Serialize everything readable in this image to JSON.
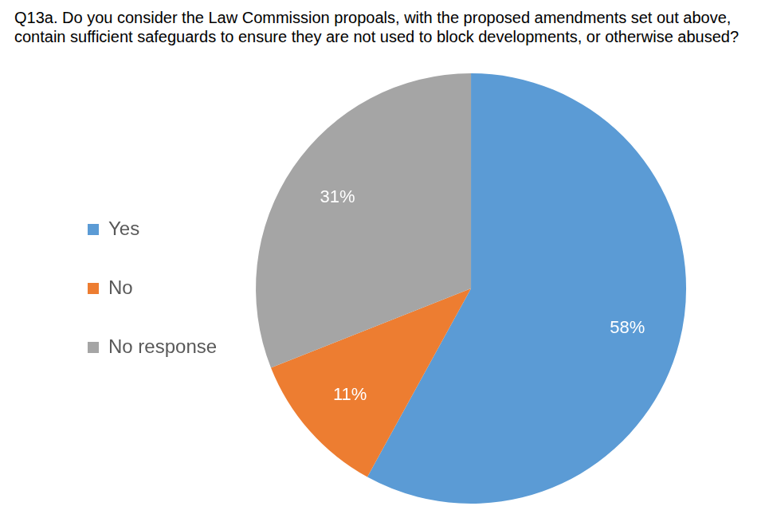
{
  "chart_data": {
    "type": "pie",
    "title": "Q13a. Do you consider the Law Commission propoals, with the proposed amendments set out above, contain sufficient safeguards to ensure they are not used to block developments, or otherwise abused?",
    "categories": [
      "Yes",
      "No",
      "No response"
    ],
    "values": [
      58,
      11,
      31
    ],
    "value_labels": [
      "58%",
      "11%",
      "31%"
    ],
    "colors": [
      "#5B9BD5",
      "#ED7D31",
      "#A5A5A5"
    ],
    "legend": "left",
    "data_labels": true
  }
}
